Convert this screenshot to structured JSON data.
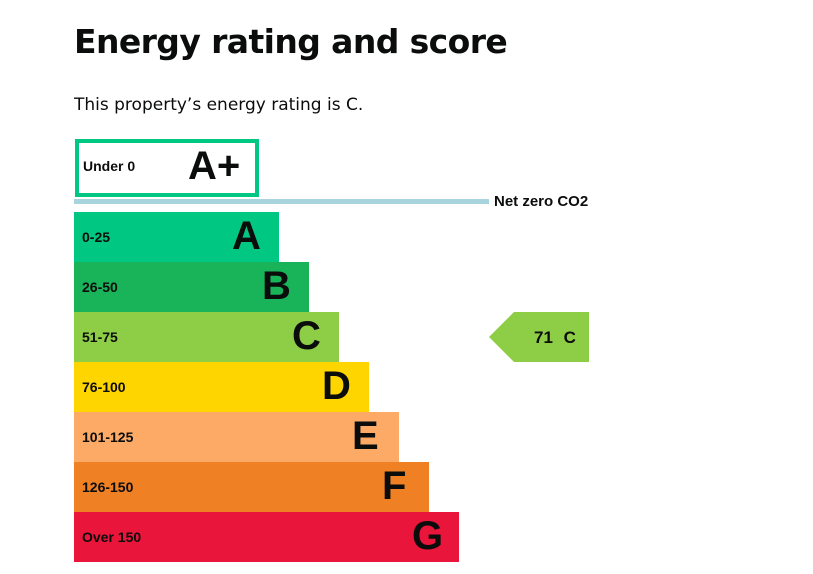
{
  "page": {
    "title": "Energy rating and score",
    "intro": "This property’s energy rating is C."
  },
  "chart_data": {
    "type": "bar",
    "bands": [
      {
        "letter": "A+",
        "range": "Under 0",
        "color": "#00c781",
        "style": "outline"
      },
      {
        "letter": "A",
        "range": "0-25",
        "color": "#00c781"
      },
      {
        "letter": "B",
        "range": "26-50",
        "color": "#19b459"
      },
      {
        "letter": "C",
        "range": "51-75",
        "color": "#8dce46"
      },
      {
        "letter": "D",
        "range": "76-100",
        "color": "#ffd500"
      },
      {
        "letter": "E",
        "range": "101-125",
        "color": "#fcaa65"
      },
      {
        "letter": "F",
        "range": "126-150",
        "color": "#ef8023"
      },
      {
        "letter": "G",
        "range": "Over 150",
        "color": "#e9153b"
      }
    ],
    "net_zero": {
      "label": "Net zero CO2",
      "color": "#a8d5dd"
    },
    "current_rating": {
      "score": "71",
      "letter": "C",
      "color": "#8dce46"
    }
  }
}
